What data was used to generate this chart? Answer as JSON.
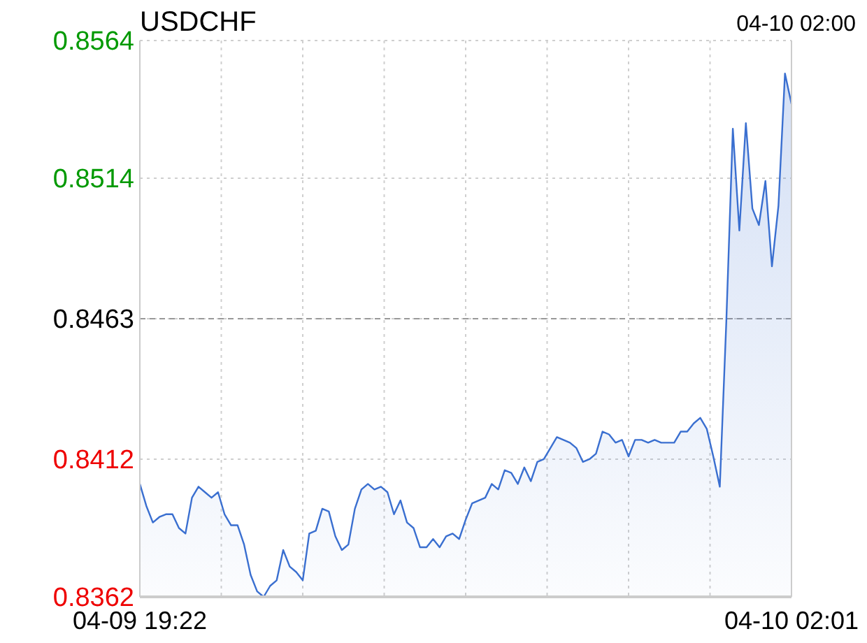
{
  "chart_data": {
    "type": "area",
    "title": "USDCHF",
    "annotations": [
      "04-10 02:00"
    ],
    "color": "#3a6fd0",
    "categories": [
      "04-09 19:22",
      null,
      null,
      null,
      null,
      null,
      null,
      null,
      null,
      null,
      null,
      null,
      null,
      null,
      null,
      null,
      null,
      null,
      null,
      null,
      null,
      null,
      null,
      null,
      null,
      null,
      null,
      null,
      null,
      null,
      null,
      null,
      null,
      null,
      null,
      null,
      null,
      null,
      null,
      null,
      null,
      null,
      null,
      null,
      null,
      null,
      null,
      null,
      null,
      null,
      null,
      null,
      null,
      null,
      null,
      null,
      null,
      null,
      null,
      null,
      null,
      null,
      null,
      null,
      null,
      null,
      null,
      null,
      null,
      null,
      null,
      null,
      null,
      null,
      null,
      null,
      null,
      null,
      null,
      null,
      null,
      null,
      null,
      null,
      null,
      null,
      null,
      null,
      null,
      null,
      null,
      null,
      null,
      null,
      null,
      null,
      null,
      null,
      null,
      null,
      "04-10 02:01"
    ],
    "values": [
      0.8403,
      0.8395,
      0.8389,
      0.8391,
      0.8392,
      0.8392,
      0.8387,
      0.8385,
      0.8398,
      0.8402,
      0.84,
      0.8398,
      0.84,
      0.8392,
      0.8388,
      0.8388,
      0.8381,
      0.837,
      0.8364,
      0.8362,
      0.8366,
      0.8368,
      0.8379,
      0.8373,
      0.8371,
      0.8368,
      0.8385,
      0.8386,
      0.8394,
      0.8393,
      0.8384,
      0.8379,
      0.8381,
      0.8394,
      0.8401,
      0.8403,
      0.8401,
      0.8402,
      0.84,
      0.8392,
      0.8397,
      0.8389,
      0.8387,
      0.838,
      0.838,
      0.8383,
      0.838,
      0.8384,
      0.8385,
      0.8383,
      0.839,
      0.8396,
      0.8397,
      0.8398,
      0.8403,
      0.8401,
      0.8408,
      0.8407,
      0.8403,
      0.8409,
      0.8404,
      0.8411,
      0.8412,
      0.8416,
      0.842,
      0.8419,
      0.8418,
      0.8416,
      0.8411,
      0.8412,
      0.8414,
      0.8422,
      0.8421,
      0.8418,
      0.8419,
      0.8413,
      0.8419,
      0.8419,
      0.8418,
      0.8419,
      0.8418,
      0.8418,
      0.8418,
      0.8422,
      0.8422,
      0.8425,
      0.8427,
      0.8423,
      0.8413,
      0.8402,
      0.8462,
      0.8532,
      0.8495,
      0.8534,
      0.8503,
      0.8497,
      0.8513,
      0.8482,
      0.8504,
      0.8552,
      0.8541
    ],
    "ylim": [
      0.8362,
      0.8564
    ],
    "yticks": [
      0.8362,
      0.8412,
      0.8463,
      0.8514,
      0.8564
    ],
    "grid": true,
    "ref_lines": [
      {
        "axis": "y",
        "value": 0.8463,
        "line_style": "dashed"
      }
    ]
  }
}
